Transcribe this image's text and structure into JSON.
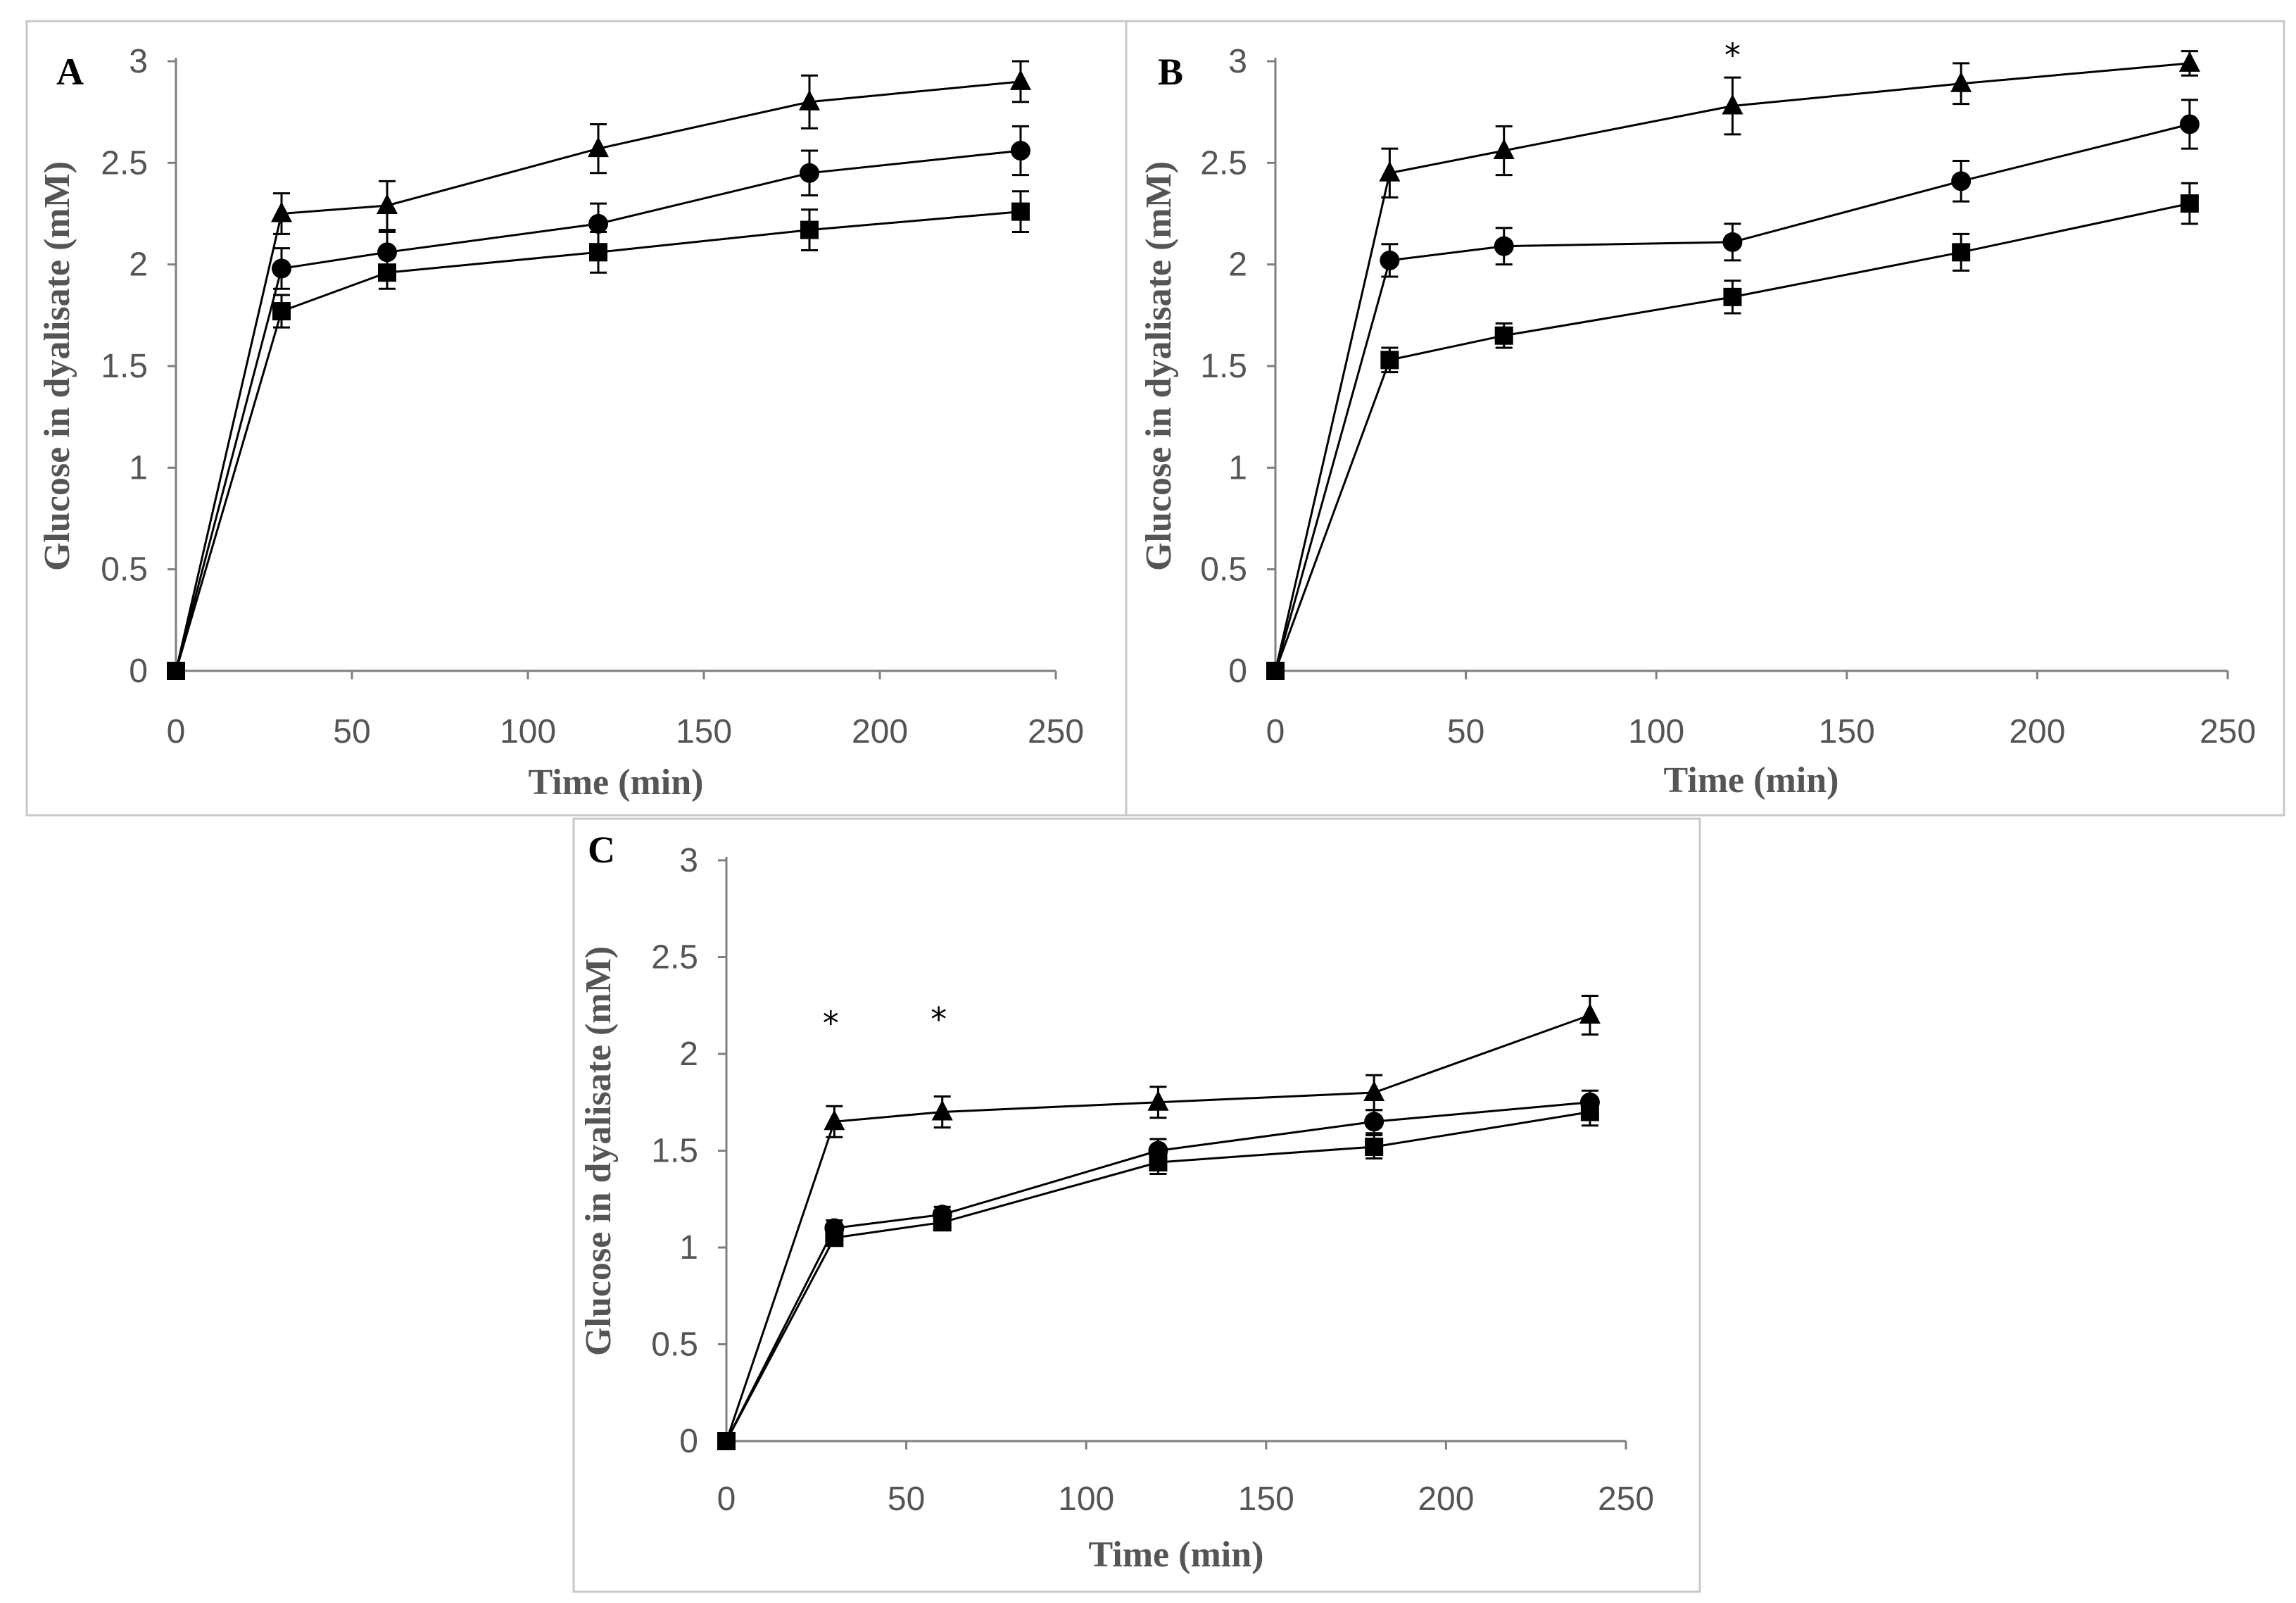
{
  "chart_data": [
    {
      "type": "line",
      "panel_label": "A",
      "xlabel": "Time (min)",
      "ylabel": "Glucose in dyalisate (mM)",
      "xlim": [
        0,
        250
      ],
      "ylim": [
        0,
        3
      ],
      "xticks": [
        "0",
        "50",
        "100",
        "150",
        "200",
        "250"
      ],
      "yticks": [
        "0",
        "0.5",
        "1",
        "1.5",
        "2",
        "2.5",
        "3"
      ],
      "x": [
        0,
        30,
        60,
        120,
        180,
        240
      ],
      "series": [
        {
          "name": "triangle",
          "marker": "triangle",
          "values": [
            0,
            2.25,
            2.29,
            2.57,
            2.8,
            2.9
          ],
          "errors": [
            0,
            0.1,
            0.12,
            0.12,
            0.13,
            0.1
          ]
        },
        {
          "name": "circle",
          "marker": "circle",
          "values": [
            0,
            1.98,
            2.06,
            2.2,
            2.45,
            2.56
          ],
          "errors": [
            0,
            0.1,
            0.1,
            0.1,
            0.11,
            0.12
          ]
        },
        {
          "name": "square",
          "marker": "square",
          "values": [
            0,
            1.77,
            1.96,
            2.06,
            2.17,
            2.26
          ],
          "errors": [
            0,
            0.08,
            0.08,
            0.1,
            0.1,
            0.1
          ]
        }
      ],
      "annotations": []
    },
    {
      "type": "line",
      "panel_label": "B",
      "xlabel": "Time (min)",
      "ylabel": "Glucose in dyalisate (mM)",
      "xlim": [
        0,
        250
      ],
      "ylim": [
        0,
        3
      ],
      "xticks": [
        "0",
        "50",
        "100",
        "150",
        "200",
        "250"
      ],
      "yticks": [
        "0",
        "0.5",
        "1",
        "1.5",
        "2",
        "2.5",
        "3"
      ],
      "x": [
        0,
        30,
        60,
        120,
        180,
        240
      ],
      "series": [
        {
          "name": "triangle",
          "marker": "triangle",
          "values": [
            0,
            2.45,
            2.56,
            2.78,
            2.89,
            2.99
          ],
          "errors": [
            0,
            0.12,
            0.12,
            0.14,
            0.1,
            0.06
          ]
        },
        {
          "name": "circle",
          "marker": "circle",
          "values": [
            0,
            2.02,
            2.09,
            2.11,
            2.41,
            2.69
          ],
          "errors": [
            0,
            0.08,
            0.09,
            0.09,
            0.1,
            0.12
          ]
        },
        {
          "name": "square",
          "marker": "square",
          "values": [
            0,
            1.53,
            1.65,
            1.84,
            2.06,
            2.3
          ],
          "errors": [
            0,
            0.06,
            0.06,
            0.08,
            0.09,
            0.1
          ]
        }
      ],
      "annotations": [
        {
          "text": "*",
          "x": 120,
          "y": 3.05
        }
      ]
    },
    {
      "type": "line",
      "panel_label": "C",
      "xlabel": "Time (min)",
      "ylabel": "Glucose in dyalisate (mM)",
      "xlim": [
        0,
        250
      ],
      "ylim": [
        0,
        3
      ],
      "xticks": [
        "0",
        "50",
        "100",
        "150",
        "200",
        "250"
      ],
      "yticks": [
        "0",
        "0.5",
        "1",
        "1.5",
        "2",
        "2.5",
        "3"
      ],
      "x": [
        0,
        30,
        60,
        120,
        180,
        240
      ],
      "series": [
        {
          "name": "triangle",
          "marker": "triangle",
          "values": [
            0,
            1.65,
            1.7,
            1.75,
            1.8,
            2.2
          ],
          "errors": [
            0,
            0.08,
            0.08,
            0.08,
            0.09,
            0.1
          ]
        },
        {
          "name": "circle",
          "marker": "circle",
          "values": [
            0,
            1.1,
            1.17,
            1.5,
            1.65,
            1.75
          ],
          "errors": [
            0,
            0.04,
            0.04,
            0.06,
            0.06,
            0.06
          ]
        },
        {
          "name": "square",
          "marker": "square",
          "values": [
            0,
            1.05,
            1.13,
            1.44,
            1.52,
            1.7
          ],
          "errors": [
            0,
            0.04,
            0.04,
            0.06,
            0.06,
            0.07
          ]
        }
      ],
      "annotations": [
        {
          "text": "*",
          "x": 29,
          "y": 2.18
        },
        {
          "text": "*",
          "x": 59,
          "y": 2.2
        }
      ]
    }
  ]
}
